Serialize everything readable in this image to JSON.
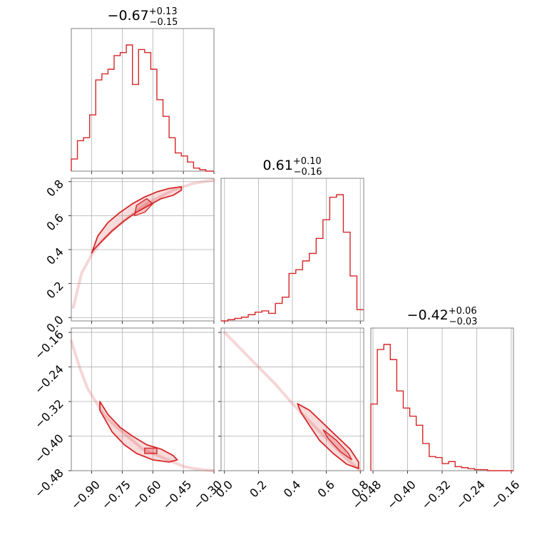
{
  "chart_data": [
    {
      "type": "histogram",
      "panel": "param-1-marginal",
      "title": {
        "main": "−0.67",
        "sup": "+0.13",
        "sub": "−0.15"
      },
      "xlim": [
        -1.0,
        -0.3
      ],
      "x_ticks": [
        -0.9,
        -0.75,
        -0.6,
        -0.45,
        -0.3
      ],
      "bin_edges": [
        -1.0,
        -0.97,
        -0.94,
        -0.91,
        -0.88,
        -0.85,
        -0.82,
        -0.79,
        -0.76,
        -0.73,
        -0.7,
        -0.67,
        -0.64,
        -0.61,
        -0.58,
        -0.55,
        -0.52,
        -0.49,
        -0.46,
        -0.43,
        -0.4,
        -0.37,
        -0.34,
        -0.3
      ],
      "counts": [
        8,
        20,
        22,
        37,
        60,
        64,
        67,
        76,
        78,
        83,
        57,
        80,
        78,
        67,
        47,
        36,
        22,
        12,
        10,
        6,
        2,
        1,
        0
      ]
    },
    {
      "type": "contour",
      "panel": "param-1-vs-param-2",
      "xlim": [
        -1.0,
        -0.3
      ],
      "ylim": [
        -0.02,
        0.82
      ],
      "x_ticks": [
        -0.9,
        -0.75,
        -0.6,
        -0.45,
        -0.3
      ],
      "y_ticks": [
        0.0,
        0.2,
        0.4,
        0.6,
        0.8
      ],
      "y_ticklabels": [
        "0.0",
        "0.2",
        "0.4",
        "0.6",
        "0.8"
      ],
      "ridge_x": [
        -0.99,
        -0.95,
        -0.9,
        -0.85,
        -0.8,
        -0.75,
        -0.7,
        -0.65,
        -0.6,
        -0.55,
        -0.5,
        -0.45,
        -0.4,
        -0.35,
        -0.3
      ],
      "ridge_y": [
        0.06,
        0.26,
        0.37,
        0.45,
        0.51,
        0.56,
        0.61,
        0.65,
        0.69,
        0.72,
        0.75,
        0.77,
        0.79,
        0.8,
        0.81
      ],
      "contour_1": {
        "x": [
          -0.89,
          -0.85,
          -0.8,
          -0.74,
          -0.68,
          -0.62,
          -0.56,
          -0.5,
          -0.46,
          -0.46,
          -0.52,
          -0.58,
          -0.64,
          -0.7,
          -0.76,
          -0.82,
          -0.87,
          -0.9
        ],
        "y": [
          0.4,
          0.45,
          0.51,
          0.57,
          0.62,
          0.66,
          0.7,
          0.72,
          0.75,
          0.77,
          0.76,
          0.74,
          0.71,
          0.67,
          0.62,
          0.56,
          0.48,
          0.38
        ]
      },
      "contour_2": {
        "x": [
          -0.69,
          -0.64,
          -0.6,
          -0.63,
          -0.68
        ],
        "y": [
          0.6,
          0.62,
          0.67,
          0.7,
          0.66
        ]
      }
    },
    {
      "type": "histogram",
      "panel": "param-2-marginal",
      "title": {
        "main": "0.61",
        "sup": "+0.10",
        "sub": "−0.16"
      },
      "xlim": [
        -0.02,
        0.82
      ],
      "x_ticks": [
        0.0,
        0.2,
        0.4,
        0.6,
        0.8
      ],
      "x_ticklabels": [
        "0.0",
        "0.2",
        "0.4",
        "0.6",
        "0.8"
      ],
      "bin_edges": [
        -0.02,
        0.02,
        0.06,
        0.1,
        0.14,
        0.18,
        0.22,
        0.26,
        0.3,
        0.34,
        0.38,
        0.42,
        0.46,
        0.5,
        0.54,
        0.58,
        0.62,
        0.66,
        0.7,
        0.74,
        0.78,
        0.82
      ],
      "counts": [
        0,
        1,
        2,
        3,
        5,
        7,
        8,
        6,
        14,
        19,
        38,
        41,
        48,
        54,
        66,
        81,
        99,
        101,
        71,
        36,
        9
      ]
    },
    {
      "type": "contour",
      "panel": "param-1-vs-param-3",
      "xlim": [
        -1.0,
        -0.3
      ],
      "ylim": [
        -0.48,
        -0.15
      ],
      "x_ticks": [
        -0.9,
        -0.75,
        -0.6,
        -0.45,
        -0.3
      ],
      "x_ticklabels": [
        "−0.90",
        "−0.75",
        "−0.60",
        "−0.45",
        "−0.30"
      ],
      "y_ticks": [
        -0.16,
        -0.24,
        -0.32,
        -0.4,
        -0.48
      ],
      "y_ticklabels": [
        "−0.16",
        "−0.24",
        "−0.32",
        "−0.40",
        "−0.48"
      ],
      "ridge_x": [
        -1.0,
        -0.96,
        -0.92,
        -0.88,
        -0.84,
        -0.8,
        -0.75,
        -0.7,
        -0.65,
        -0.6,
        -0.55,
        -0.5,
        -0.45,
        -0.4,
        -0.35,
        -0.3
      ],
      "ridge_y": [
        -0.18,
        -0.24,
        -0.29,
        -0.32,
        -0.35,
        -0.37,
        -0.39,
        -0.41,
        -0.43,
        -0.44,
        -0.45,
        -0.46,
        -0.47,
        -0.475,
        -0.478,
        -0.48
      ],
      "contour_1": {
        "x": [
          -0.86,
          -0.82,
          -0.76,
          -0.7,
          -0.63,
          -0.56,
          -0.5,
          -0.48,
          -0.52,
          -0.6,
          -0.68,
          -0.74,
          -0.8,
          -0.86
        ],
        "y": [
          -0.32,
          -0.35,
          -0.38,
          -0.4,
          -0.42,
          -0.43,
          -0.445,
          -0.455,
          -0.46,
          -0.455,
          -0.44,
          -0.42,
          -0.39,
          -0.34
        ]
      },
      "contour_2": {
        "x": [
          -0.64,
          -0.58,
          -0.58,
          -0.64
        ],
        "y": [
          -0.428,
          -0.428,
          -0.44,
          -0.44
        ]
      }
    },
    {
      "type": "contour",
      "panel": "param-2-vs-param-3",
      "xlim": [
        -0.02,
        0.82
      ],
      "ylim": [
        -0.48,
        -0.15
      ],
      "x_ticks": [
        0.0,
        0.2,
        0.4,
        0.6,
        0.8
      ],
      "x_ticklabels": [
        "0.0",
        "0.2",
        "0.4",
        "0.6",
        "0.8"
      ],
      "y_ticks": [
        -0.16,
        -0.24,
        -0.32,
        -0.4,
        -0.48
      ],
      "ridge_x": [
        0.0,
        0.1,
        0.2,
        0.3,
        0.4,
        0.5,
        0.6,
        0.7,
        0.8
      ],
      "ridge_y": [
        -0.16,
        -0.2,
        -0.24,
        -0.28,
        -0.325,
        -0.365,
        -0.405,
        -0.445,
        -0.48
      ],
      "contour_1": {
        "x": [
          0.43,
          0.5,
          0.58,
          0.66,
          0.74,
          0.79,
          0.79,
          0.72,
          0.64,
          0.56,
          0.5,
          0.45
        ],
        "y": [
          -0.325,
          -0.34,
          -0.37,
          -0.4,
          -0.43,
          -0.46,
          -0.475,
          -0.465,
          -0.44,
          -0.41,
          -0.375,
          -0.345
        ]
      },
      "contour_2": {
        "x": [
          0.58,
          0.66,
          0.73,
          0.75,
          0.68,
          0.61
        ],
        "y": [
          -0.385,
          -0.41,
          -0.44,
          -0.455,
          -0.435,
          -0.405
        ]
      }
    },
    {
      "type": "histogram",
      "panel": "param-3-marginal",
      "title": {
        "main": "−0.42",
        "sup": "+0.06",
        "sub": "−0.03"
      },
      "xlim": [
        -0.485,
        -0.155
      ],
      "x_ticks": [
        -0.48,
        -0.4,
        -0.32,
        -0.24,
        -0.16
      ],
      "x_ticklabels": [
        "−0.48",
        "−0.40",
        "−0.32",
        "−0.24",
        "−0.16"
      ],
      "bin_edges": [
        -0.485,
        -0.47,
        -0.455,
        -0.44,
        -0.425,
        -0.41,
        -0.395,
        -0.38,
        -0.365,
        -0.35,
        -0.335,
        -0.32,
        -0.305,
        -0.29,
        -0.275,
        -0.26,
        -0.245,
        -0.23,
        -0.215,
        -0.2,
        -0.185,
        -0.17,
        -0.155
      ],
      "counts": [
        66,
        120,
        125,
        110,
        79,
        62,
        54,
        45,
        27,
        14,
        13,
        7,
        9,
        4,
        3,
        2,
        1,
        1,
        0,
        0,
        0,
        0
      ]
    }
  ]
}
